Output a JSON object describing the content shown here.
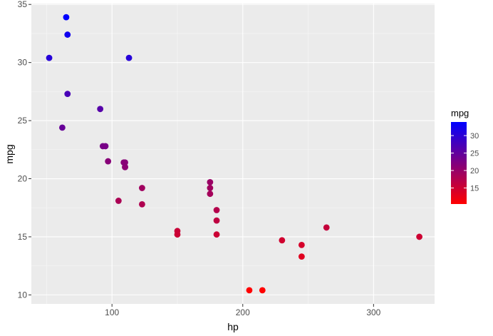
{
  "chart_data": {
    "type": "scatter",
    "title": "",
    "xlabel": "hp",
    "ylabel": "mpg",
    "xlim": [
      38.35,
      346.65
    ],
    "ylim": [
      9.225,
      35.075
    ],
    "x_ticks": [
      100,
      200,
      300
    ],
    "y_ticks": [
      10,
      15,
      20,
      25,
      30,
      35
    ],
    "grid": true,
    "color_by": "mpg",
    "legend": {
      "title": "mpg",
      "placement": "right",
      "gradient_low": "#ff0000",
      "gradient_high": "#0000ff",
      "range": [
        10.4,
        33.9
      ],
      "ticks": [
        15,
        20,
        25,
        30
      ]
    },
    "x": [
      110,
      110,
      93,
      110,
      175,
      105,
      245,
      62,
      95,
      123,
      123,
      180,
      180,
      180,
      205,
      215,
      230,
      66,
      52,
      65,
      97,
      150,
      150,
      245,
      175,
      66,
      91,
      113,
      264,
      175,
      335,
      109
    ],
    "y": [
      21.0,
      21.0,
      22.8,
      21.4,
      18.7,
      18.1,
      14.3,
      24.4,
      22.8,
      19.2,
      17.8,
      16.4,
      17.3,
      15.2,
      10.4,
      10.4,
      14.7,
      32.4,
      30.4,
      33.9,
      21.5,
      15.5,
      15.2,
      13.3,
      19.2,
      27.3,
      26.0,
      30.4,
      15.8,
      19.7,
      15.0,
      21.4
    ]
  }
}
